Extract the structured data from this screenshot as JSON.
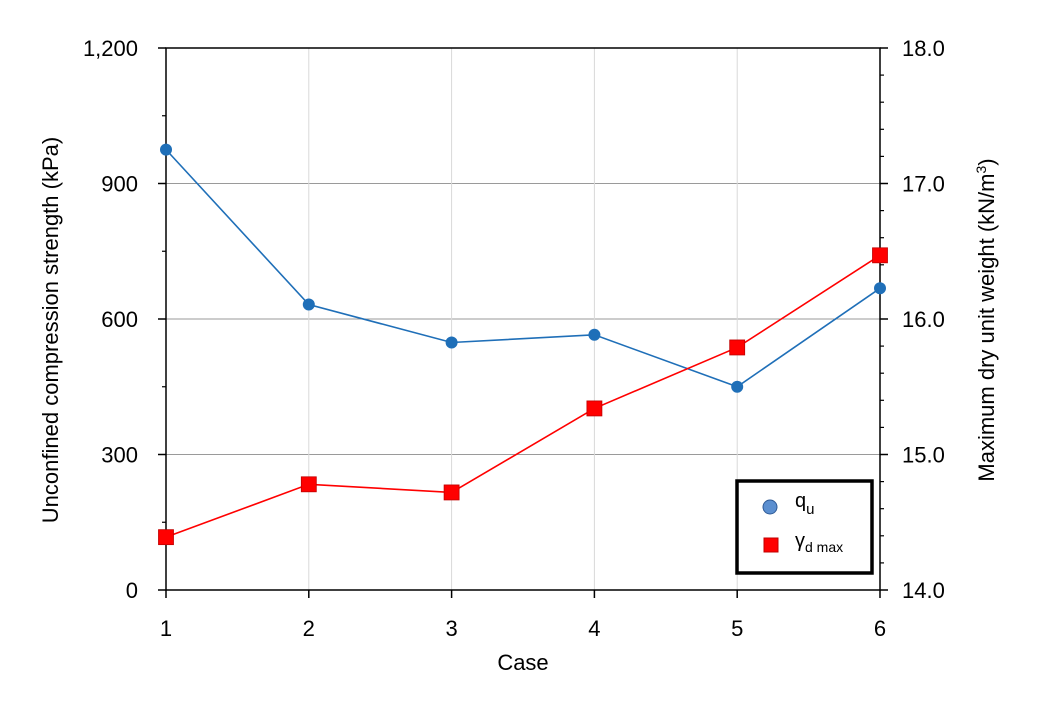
{
  "chart_data": {
    "type": "line",
    "x": [
      1,
      2,
      3,
      4,
      5,
      6
    ],
    "xlabel": "Case",
    "x_ticks": [
      "1",
      "2",
      "3",
      "4",
      "5",
      "6"
    ],
    "xlim": [
      1,
      6
    ],
    "left_axis": {
      "label": "Unconfined compression strength (kPa)",
      "ylim": [
        0,
        1200
      ],
      "ticks": [
        0,
        300,
        600,
        900,
        1200
      ],
      "tick_labels": [
        "0",
        "300",
        "600",
        "900",
        "1,200"
      ]
    },
    "right_axis": {
      "label_main": "Maximum dry unit weight (kN/m",
      "label_sup": "3",
      "label_close": ")",
      "ylim": [
        14.0,
        18.0
      ],
      "ticks": [
        14.0,
        15.0,
        16.0,
        17.0,
        18.0
      ],
      "tick_labels": [
        "14.0",
        "15.0",
        "16.0",
        "17.0",
        "18.0"
      ]
    },
    "series": [
      {
        "name": "q",
        "name_sub": "u",
        "axis": "left",
        "marker": "circle",
        "color": "#1f6fb8",
        "values": [
          975,
          632,
          548,
          565,
          450,
          668
        ]
      },
      {
        "name": "γ",
        "name_sub": "d max",
        "axis": "right",
        "marker": "square",
        "color": "#ff0000",
        "values": [
          14.39,
          14.78,
          14.72,
          15.34,
          15.79,
          16.47
        ]
      }
    ],
    "grid": true,
    "legend_position": "bottom-right"
  }
}
